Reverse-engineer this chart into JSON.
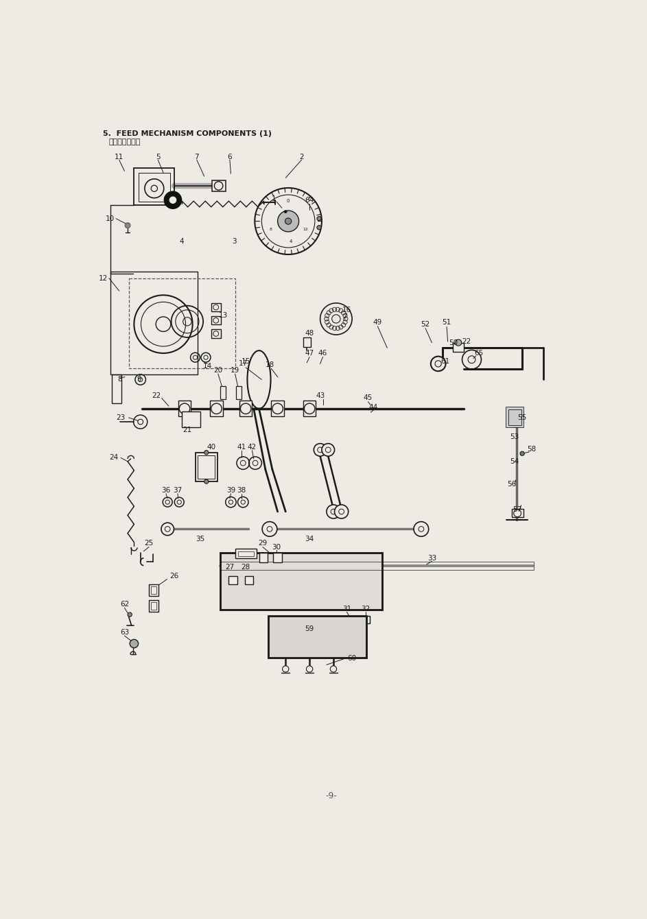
{
  "title_line1": "5.  FEED MECHANISM COMPONENTS (1)",
  "title_line2": "送り関係（１）",
  "page_number": "-9-",
  "background_color": "#eeebe5",
  "text_color": "#1a1a1a",
  "fig_width": 9.43,
  "fig_height": 13.4,
  "dpi": 100,
  "lc": "#1a1a1a"
}
